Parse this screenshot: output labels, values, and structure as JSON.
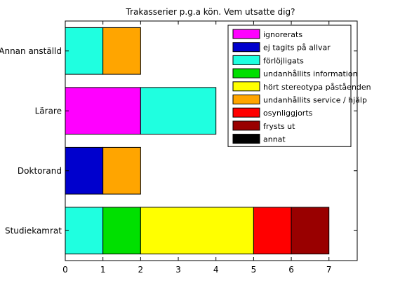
{
  "chart_data": {
    "type": "bar",
    "orientation": "horizontal",
    "stacked": true,
    "title": "Trakasserier p.g.a kön. Vem utsatte dig?",
    "xlabel": "",
    "ylabel": "",
    "xlim": [
      0,
      7.75
    ],
    "x_ticks": [
      0,
      1,
      2,
      3,
      4,
      5,
      6,
      7
    ],
    "grid": false,
    "legend_position": "top-right",
    "categories": [
      "Studiekamrat",
      "Doktorand",
      "Lärare",
      "Annan anställd"
    ],
    "series": [
      {
        "name": "ignorerats",
        "color": "#ff00ff",
        "values": [
          0,
          0,
          2,
          0
        ]
      },
      {
        "name": "ej tagits på allvar",
        "color": "#0000cd",
        "values": [
          0,
          1,
          0,
          0
        ]
      },
      {
        "name": "förlöjligats",
        "color": "#1fffe0",
        "values": [
          1,
          0,
          2,
          1
        ]
      },
      {
        "name": "undanhållits information",
        "color": "#00e000",
        "values": [
          1,
          0,
          0,
          0
        ]
      },
      {
        "name": "hört stereotypa påståenden",
        "color": "#ffff00",
        "values": [
          3,
          0,
          0,
          0
        ]
      },
      {
        "name": "undanhållits service / hjälp",
        "color": "#ffa500",
        "values": [
          0,
          1,
          0,
          1
        ]
      },
      {
        "name": "osynliggjorts",
        "color": "#ff0000",
        "values": [
          1,
          0,
          0,
          0
        ]
      },
      {
        "name": "frysts ut",
        "color": "#990000",
        "values": [
          1,
          0,
          0,
          0
        ]
      },
      {
        "name": "annat",
        "color": "#000000",
        "values": [
          0,
          0,
          0,
          0
        ]
      }
    ]
  }
}
